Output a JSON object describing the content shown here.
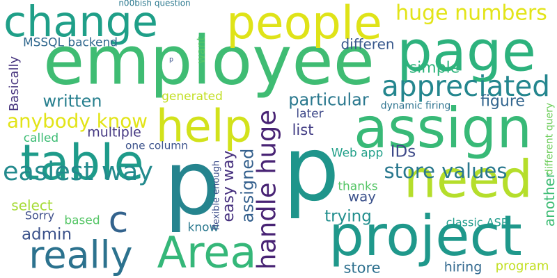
{
  "words": [
    {
      "text": "employee",
      "color": "#3fbc73",
      "vertical": false
    },
    {
      "text": "change",
      "color": "#1f9f88",
      "vertical": false
    },
    {
      "text": "people",
      "color": "#dfe318",
      "vertical": false
    },
    {
      "text": "page",
      "color": "#2db27d",
      "vertical": false
    },
    {
      "text": "assign",
      "color": "#38b977",
      "vertical": false
    },
    {
      "text": "help",
      "color": "#d2e21b",
      "vertical": false
    },
    {
      "text": "table",
      "color": "#1e9b8a",
      "vertical": false
    },
    {
      "text": "p",
      "color": "#25848e",
      "vertical": false
    },
    {
      "text": "p",
      "color": "#1f958b",
      "vertical": false
    },
    {
      "text": "need",
      "color": "#b5de2b",
      "vertical": false
    },
    {
      "text": "project",
      "color": "#1f988b",
      "vertical": false
    },
    {
      "text": "Area",
      "color": "#35b779",
      "vertical": false
    },
    {
      "text": "really",
      "color": "#2c728e",
      "vertical": false
    },
    {
      "text": "c",
      "color": "#33638d",
      "vertical": false
    },
    {
      "text": "appreciated",
      "color": "#24868e",
      "vertical": false
    },
    {
      "text": "huge numbers",
      "color": "#e2e418",
      "vertical": false
    },
    {
      "text": "n00bish question",
      "color": "#2a788e",
      "vertical": false
    },
    {
      "text": "MSSQL backend",
      "color": "#31688e",
      "vertical": false
    },
    {
      "text": "differen",
      "color": "#38588c",
      "vertical": false
    },
    {
      "text": "simple",
      "color": "#2fb47c",
      "vertical": false
    },
    {
      "text": "particular",
      "color": "#2a788e",
      "vertical": false
    },
    {
      "text": "figure",
      "color": "#32658e",
      "vertical": false
    },
    {
      "text": "written",
      "color": "#277f8e",
      "vertical": false
    },
    {
      "text": "generated",
      "color": "#c2df23",
      "vertical": false
    },
    {
      "text": "anybody know",
      "color": "#e2e418",
      "vertical": false
    },
    {
      "text": "later",
      "color": "#3e4989",
      "vertical": false
    },
    {
      "text": "list",
      "color": "#433e85",
      "vertical": false
    },
    {
      "text": "dynamic firing",
      "color": "#2c728e",
      "vertical": false
    },
    {
      "text": "multiple",
      "color": "#453882",
      "vertical": false
    },
    {
      "text": "called",
      "color": "#3dbc74",
      "vertical": false
    },
    {
      "text": "one column",
      "color": "#3b528b",
      "vertical": false
    },
    {
      "text": "easiest way",
      "color": "#238a8d",
      "vertical": false
    },
    {
      "text": "store values",
      "color": "#2a788e",
      "vertical": false
    },
    {
      "text": "Web app",
      "color": "#1f9f88",
      "vertical": false
    },
    {
      "text": "IDs",
      "color": "#3e4a89",
      "vertical": false
    },
    {
      "text": "way",
      "color": "#3b518b",
      "vertical": false
    },
    {
      "text": "thanks",
      "color": "#56c667",
      "vertical": false
    },
    {
      "text": "select",
      "color": "#a5db36",
      "vertical": false
    },
    {
      "text": "Sorry",
      "color": "#3d4e8a",
      "vertical": false
    },
    {
      "text": "based",
      "color": "#56c667",
      "vertical": false
    },
    {
      "text": "trying",
      "color": "#218e8d",
      "vertical": false
    },
    {
      "text": "admin",
      "color": "#3b528b",
      "vertical": false
    },
    {
      "text": "know",
      "color": "#2a788e",
      "vertical": false
    },
    {
      "text": "classic ASP",
      "color": "#1e9b8a",
      "vertical": false
    },
    {
      "text": "store",
      "color": "#2d708e",
      "vertical": false
    },
    {
      "text": "hiring",
      "color": "#31688e",
      "vertical": false
    },
    {
      "text": "program",
      "color": "#c2df23",
      "vertical": false
    },
    {
      "text": "p",
      "color": "#3b528b",
      "vertical": false
    },
    {
      "text": "Basically",
      "color": "#46337e",
      "vertical": true
    },
    {
      "text": "want",
      "color": "#56c667",
      "vertical": true
    },
    {
      "text": "easy way",
      "color": "#46307e",
      "vertical": true
    },
    {
      "text": "handle huge",
      "color": "#482374",
      "vertical": true
    },
    {
      "text": "assigned",
      "color": "#34608d",
      "vertical": true
    },
    {
      "text": "flexible enough",
      "color": "#3d4e8a",
      "vertical": true
    },
    {
      "text": "another",
      "color": "#3dbc74",
      "vertical": true
    },
    {
      "text": "different query",
      "color": "#6ccd5a",
      "vertical": true
    }
  ]
}
